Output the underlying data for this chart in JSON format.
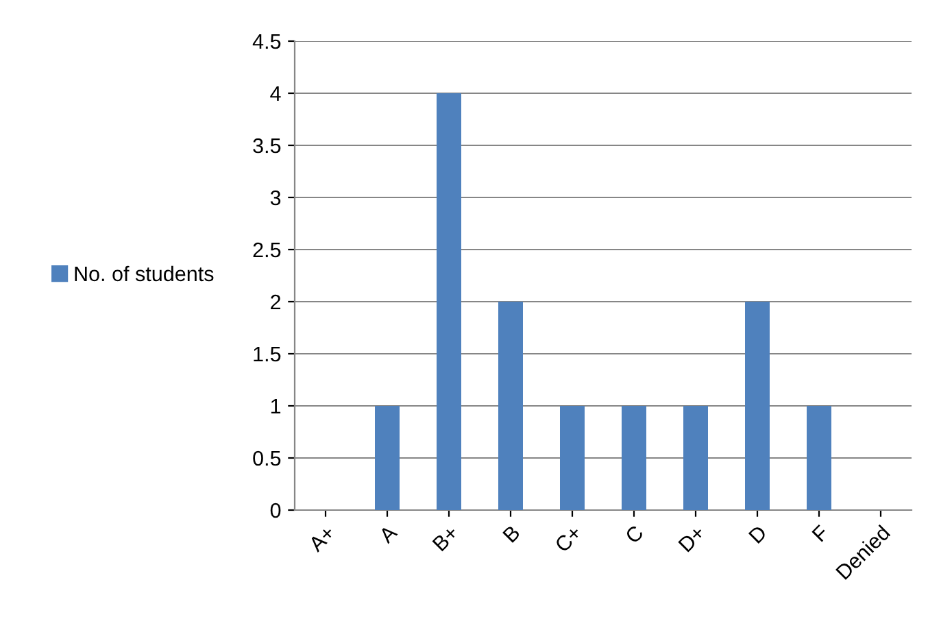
{
  "chart_data": {
    "type": "bar",
    "categories": [
      "A+",
      "A",
      "B+",
      "B",
      "C+",
      "C",
      "D+",
      "D",
      "F",
      "Denied"
    ],
    "series": [
      {
        "name": "No. of students",
        "color": "#4f81bd",
        "values": [
          0,
          1,
          4,
          2,
          1,
          1,
          1,
          2,
          1,
          0
        ]
      }
    ],
    "ylim": [
      0,
      4.5
    ],
    "yticks": [
      0,
      0.5,
      1,
      1.5,
      2,
      2.5,
      3,
      3.5,
      4,
      4.5
    ],
    "grid": "y",
    "legend": "left"
  }
}
